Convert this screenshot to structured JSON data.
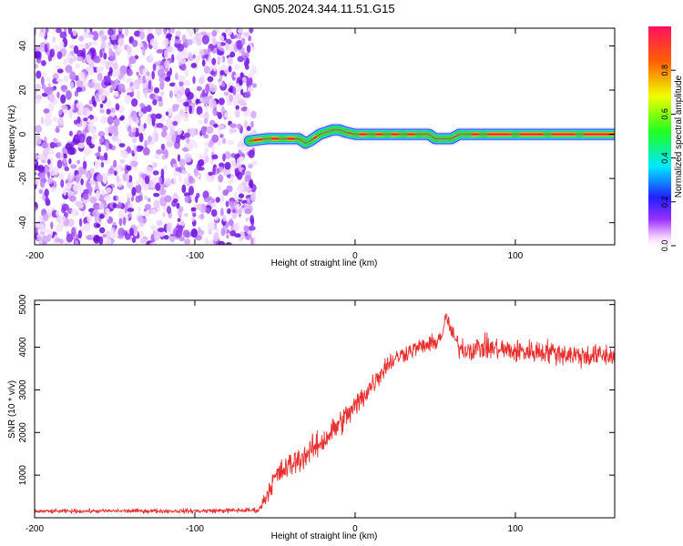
{
  "title": "GN05.2024.344.11.51.G15",
  "colors": {
    "snr_line": "#e83030",
    "scatter_noise": "#7a18e8",
    "trace_core": "#e8204a",
    "trace_ring": "#18d860",
    "frame": "#000000"
  },
  "colorbar": {
    "label": "Normalized spectral amplitude",
    "ticks": [
      "0.0",
      "0.2",
      "0.4",
      "0.6",
      "0.8"
    ],
    "tick_values": [
      0.0,
      0.2,
      0.4,
      0.6,
      0.8
    ],
    "range": [
      0,
      1
    ],
    "colormap": "rainbow (magenta-blue-cyan-green-yellow-red)"
  },
  "chart_data": [
    {
      "type": "heatmap",
      "xlabel": "Height of straight line (km)",
      "ylabel": "Frequency (Hz)",
      "xlim": [
        -200,
        162
      ],
      "ylim": [
        -50,
        48
      ],
      "x_ticks": [
        -200,
        -100,
        0,
        100
      ],
      "x_tick_labels": [
        "-200",
        "-100",
        "0",
        "100"
      ],
      "y_ticks": [
        -40,
        -20,
        0,
        20,
        40
      ],
      "y_tick_labels": [
        "-40",
        "-20",
        "0",
        "20",
        "40"
      ],
      "noise_region_x": [
        -200,
        -65
      ],
      "trace": {
        "x": [
          -66,
          -55,
          -45,
          -35,
          -31,
          -28,
          -22,
          -18,
          -14,
          -10,
          -6,
          0,
          10,
          20,
          30,
          40,
          46,
          50,
          55,
          60,
          65,
          70,
          80,
          100,
          120,
          140,
          162
        ],
        "y": [
          -3,
          -2,
          -2,
          -2,
          -4,
          -3,
          0,
          1,
          2,
          2,
          1,
          0,
          0,
          0,
          0,
          0,
          0,
          -2,
          -2,
          -2,
          0,
          0,
          0,
          0,
          0,
          0,
          0
        ]
      }
    },
    {
      "type": "line",
      "xlabel": "Height of straight line (km)",
      "ylabel": "SNR (10 * v/v)",
      "xlim": [
        -200,
        162
      ],
      "ylim": [
        0,
        5100
      ],
      "x_ticks": [
        -200,
        -100,
        0,
        100
      ],
      "x_tick_labels": [
        "-200",
        "-100",
        "0",
        "100"
      ],
      "y_ticks": [
        1000,
        2000,
        3000,
        4000,
        5000
      ],
      "y_tick_labels": [
        "1000",
        "2000",
        "3000",
        "4000",
        "5000"
      ],
      "series": [
        {
          "x": [
            -200,
            -150,
            -100,
            -80,
            -60,
            -55,
            -50,
            -40,
            -30,
            -20,
            -10,
            0,
            10,
            20,
            30,
            40,
            50,
            55,
            57,
            60,
            65,
            70,
            80,
            100,
            120,
            140,
            162
          ],
          "y": [
            150,
            160,
            160,
            170,
            180,
            550,
            950,
            1250,
            1500,
            1800,
            2200,
            2600,
            3100,
            3600,
            3850,
            4000,
            4100,
            4350,
            4750,
            4350,
            4000,
            3950,
            4000,
            3900,
            3900,
            3800,
            3800
          ],
          "noise_amplitude": [
            70,
            70,
            80,
            80,
            90,
            300,
            400,
            450,
            450,
            450,
            450,
            450,
            400,
            350,
            300,
            280,
            280,
            300,
            300,
            300,
            350,
            400,
            400,
            400,
            400,
            400,
            400
          ]
        }
      ]
    }
  ]
}
